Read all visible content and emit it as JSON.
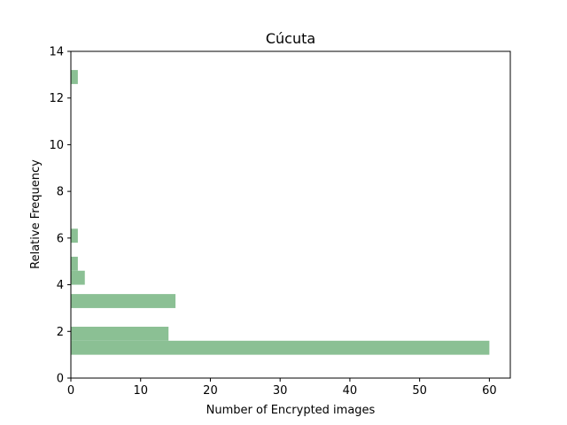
{
  "chart_data": {
    "type": "bar",
    "orientation": "horizontal",
    "title": "Cúcuta",
    "xlabel": "Number of Encrypted images",
    "ylabel": "Relative Frequency",
    "xlim": [
      0,
      63
    ],
    "ylim": [
      0,
      14
    ],
    "xticks": [
      0,
      10,
      20,
      30,
      40,
      50,
      60
    ],
    "yticks": [
      0,
      2,
      4,
      6,
      8,
      10,
      12,
      14
    ],
    "bar_color": "#8bc094",
    "grid": false,
    "bars": [
      {
        "y_start": 1.0,
        "y_end": 1.6,
        "value": 60
      },
      {
        "y_start": 1.6,
        "y_end": 2.2,
        "value": 14
      },
      {
        "y_start": 3.0,
        "y_end": 3.6,
        "value": 15
      },
      {
        "y_start": 4.0,
        "y_end": 4.6,
        "value": 2
      },
      {
        "y_start": 4.6,
        "y_end": 5.2,
        "value": 1
      },
      {
        "y_start": 5.8,
        "y_end": 6.4,
        "value": 1
      },
      {
        "y_start": 12.6,
        "y_end": 13.2,
        "value": 1
      }
    ]
  }
}
